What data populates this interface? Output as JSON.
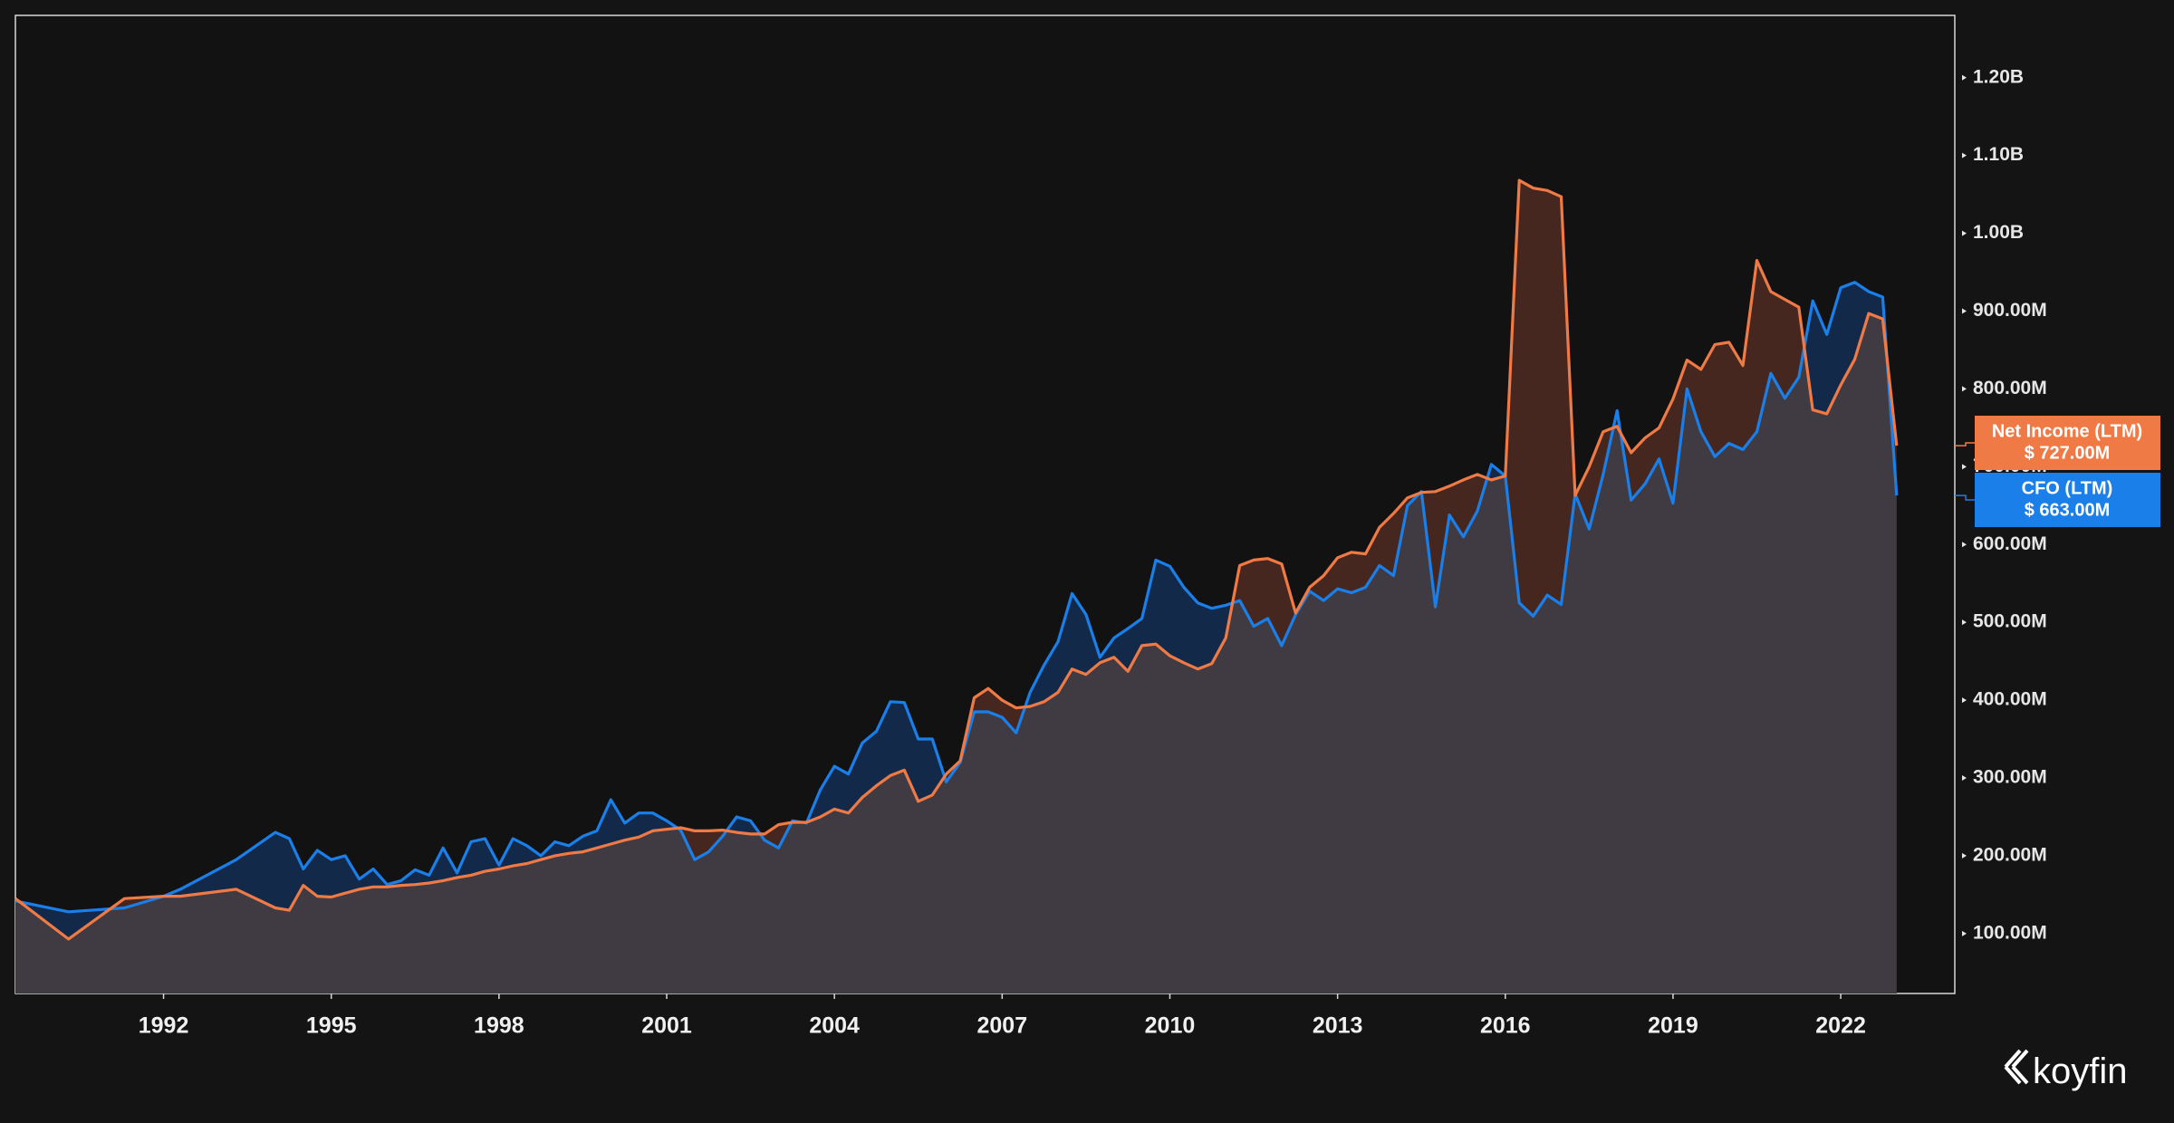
{
  "chart_data": {
    "type": "area",
    "watermark": "koyfin",
    "xlim": [
      1989.35,
      2024.04
    ],
    "xticks": [
      1992,
      1995,
      1998,
      2001,
      2004,
      2007,
      2010,
      2013,
      2016,
      2019,
      2022
    ],
    "ylim": [
      23,
      1280
    ],
    "yticks": [
      {
        "value": 100,
        "label": "100.00M"
      },
      {
        "value": 200,
        "label": "200.00M"
      },
      {
        "value": 300,
        "label": "300.00M"
      },
      {
        "value": 400,
        "label": "400.00M"
      },
      {
        "value": 500,
        "label": "500.00M"
      },
      {
        "value": 600,
        "label": "600.00M"
      },
      {
        "value": 700,
        "label": "700.00M"
      },
      {
        "value": 800,
        "label": "800.00M"
      },
      {
        "value": 900,
        "label": "900.00M"
      },
      {
        "value": 1000,
        "label": "1.00B"
      },
      {
        "value": 1100,
        "label": "1.10B"
      },
      {
        "value": 1200,
        "label": "1.20B"
      }
    ],
    "x": [
      1989.35,
      1990.3,
      1991.3,
      1992.0,
      1992.3,
      1993.3,
      1994.0,
      1994.25,
      1994.5,
      1994.75,
      1995.0,
      1995.25,
      1995.5,
      1995.75,
      1996.0,
      1996.25,
      1996.5,
      1996.75,
      1997.0,
      1997.25,
      1997.5,
      1997.75,
      1998.0,
      1998.25,
      1998.5,
      1998.75,
      1999.0,
      1999.25,
      1999.5,
      1999.75,
      2000.0,
      2000.25,
      2000.5,
      2000.75,
      2001.0,
      2001.25,
      2001.5,
      2001.75,
      2002.0,
      2002.25,
      2002.5,
      2002.75,
      2003.0,
      2003.25,
      2003.5,
      2003.75,
      2004.0,
      2004.25,
      2004.5,
      2004.75,
      2005.0,
      2005.25,
      2005.5,
      2005.75,
      2006.0,
      2006.25,
      2006.5,
      2006.75,
      2007.0,
      2007.25,
      2007.5,
      2007.75,
      2008.0,
      2008.25,
      2008.5,
      2008.75,
      2009.0,
      2009.25,
      2009.5,
      2009.75,
      2010.0,
      2010.25,
      2010.5,
      2010.75,
      2011.0,
      2011.25,
      2011.5,
      2011.75,
      2012.0,
      2012.25,
      2012.5,
      2012.75,
      2013.0,
      2013.25,
      2013.5,
      2013.75,
      2014.0,
      2014.25,
      2014.5,
      2014.75,
      2015.0,
      2015.25,
      2015.5,
      2015.75,
      2016.0,
      2016.25,
      2016.5,
      2016.75,
      2017.0,
      2017.25,
      2017.5,
      2017.75,
      2018.0,
      2018.25,
      2018.5,
      2018.75,
      2019.0,
      2019.25,
      2019.5,
      2019.75,
      2020.0,
      2020.25,
      2020.5,
      2020.75,
      2021.0,
      2021.25,
      2021.5,
      2021.75,
      2022.0,
      2022.25,
      2022.5,
      2022.75,
      2023.0
    ],
    "series": [
      {
        "name": "CFO (LTM)",
        "color": "#1a7fe8",
        "fill": "#13294a",
        "end_label": "$ 663.00M",
        "values": [
          142,
          128,
          133,
          148,
          157,
          195,
          230,
          222,
          183,
          207,
          195,
          200,
          170,
          183,
          163,
          168,
          182,
          175,
          210,
          178,
          218,
          222,
          188,
          222,
          213,
          200,
          218,
          213,
          225,
          232,
          272,
          242,
          255,
          255,
          245,
          233,
          195,
          205,
          225,
          250,
          245,
          220,
          210,
          245,
          242,
          285,
          315,
          305,
          345,
          360,
          398,
          397,
          350,
          350,
          295,
          320,
          385,
          385,
          378,
          358,
          410,
          445,
          475,
          537,
          510,
          455,
          480,
          492,
          505,
          580,
          572,
          545,
          525,
          518,
          522,
          528,
          495,
          505,
          470,
          510,
          540,
          528,
          543,
          538,
          545,
          573,
          560,
          650,
          668,
          520,
          638,
          610,
          643,
          703,
          688,
          525,
          508,
          535,
          523,
          665,
          620,
          690,
          772,
          657,
          678,
          710,
          653,
          800,
          745,
          713,
          730,
          722,
          745,
          820,
          788,
          815,
          913,
          870,
          930,
          937,
          925,
          918,
          663
        ]
      },
      {
        "name": "Net Income (LTM)",
        "color": "#f07a45",
        "fill": "#45271f",
        "end_label": "$ 727.00M",
        "values": [
          145,
          93,
          145,
          148,
          148,
          157,
          133,
          130,
          162,
          148,
          147,
          152,
          157,
          160,
          160,
          162,
          163,
          165,
          168,
          172,
          175,
          180,
          183,
          187,
          190,
          195,
          200,
          203,
          205,
          210,
          215,
          220,
          224,
          232,
          234,
          236,
          232,
          232,
          233,
          230,
          228,
          228,
          240,
          243,
          243,
          250,
          260,
          255,
          275,
          290,
          303,
          310,
          270,
          278,
          305,
          322,
          403,
          415,
          400,
          390,
          392,
          398,
          410,
          440,
          433,
          448,
          455,
          437,
          470,
          472,
          457,
          448,
          440,
          447,
          480,
          573,
          580,
          582,
          575,
          512,
          545,
          560,
          583,
          590,
          588,
          622,
          640,
          660,
          667,
          668,
          675,
          683,
          690,
          683,
          688,
          1068,
          1058,
          1055,
          1047,
          663,
          700,
          745,
          752,
          718,
          737,
          750,
          787,
          837,
          825,
          857,
          860,
          830,
          965,
          925,
          915,
          905,
          773,
          768,
          805,
          838,
          897,
          890,
          727
        ]
      }
    ],
    "overlap_fill": "#403b43"
  }
}
